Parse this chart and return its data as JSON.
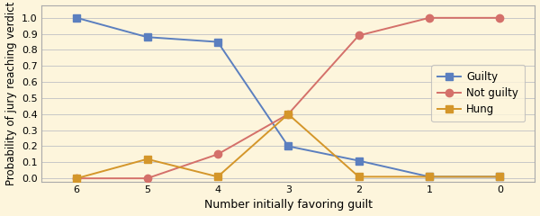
{
  "x": [
    6,
    5,
    4,
    3,
    2,
    1,
    0
  ],
  "guilty": [
    1.0,
    0.88,
    0.85,
    0.2,
    0.11,
    0.01,
    0.01
  ],
  "not_guilty": [
    0.0,
    0.0,
    0.15,
    0.4,
    0.89,
    1.0,
    1.0
  ],
  "hung": [
    0.0,
    0.12,
    0.01,
    0.4,
    0.01,
    0.01,
    0.01
  ],
  "guilty_color": "#5b7fbf",
  "not_guilty_color": "#d4706a",
  "hung_color": "#d4962a",
  "background_color": "#fdf5dc",
  "grid_color": "#c8c8c8",
  "border_color": "#aaaaaa",
  "xlabel": "Number initially favoring guilt",
  "ylabel": "Probability of jury reaching verdict",
  "xlim_min": 6.5,
  "xlim_max": -0.5,
  "ylim": [
    -0.02,
    1.08
  ],
  "yticks": [
    0.0,
    0.1,
    0.2,
    0.3,
    0.4,
    0.5,
    0.6,
    0.7,
    0.8,
    0.9,
    1.0
  ],
  "ytick_labels": [
    "0.0",
    "0.1",
    "0.2",
    "0.3",
    "0.4",
    "0.5",
    "0.6",
    "0.7",
    "0.8",
    "0.9",
    "1.0"
  ],
  "square_marker": "s",
  "circle_marker": "o",
  "linewidth": 1.4,
  "markersize": 6,
  "legend_guilty": "Guilty",
  "legend_not_guilty": "Not guilty",
  "legend_hung": "Hung",
  "legend_loc": "center right",
  "tick_fontsize": 8,
  "label_fontsize": 9
}
